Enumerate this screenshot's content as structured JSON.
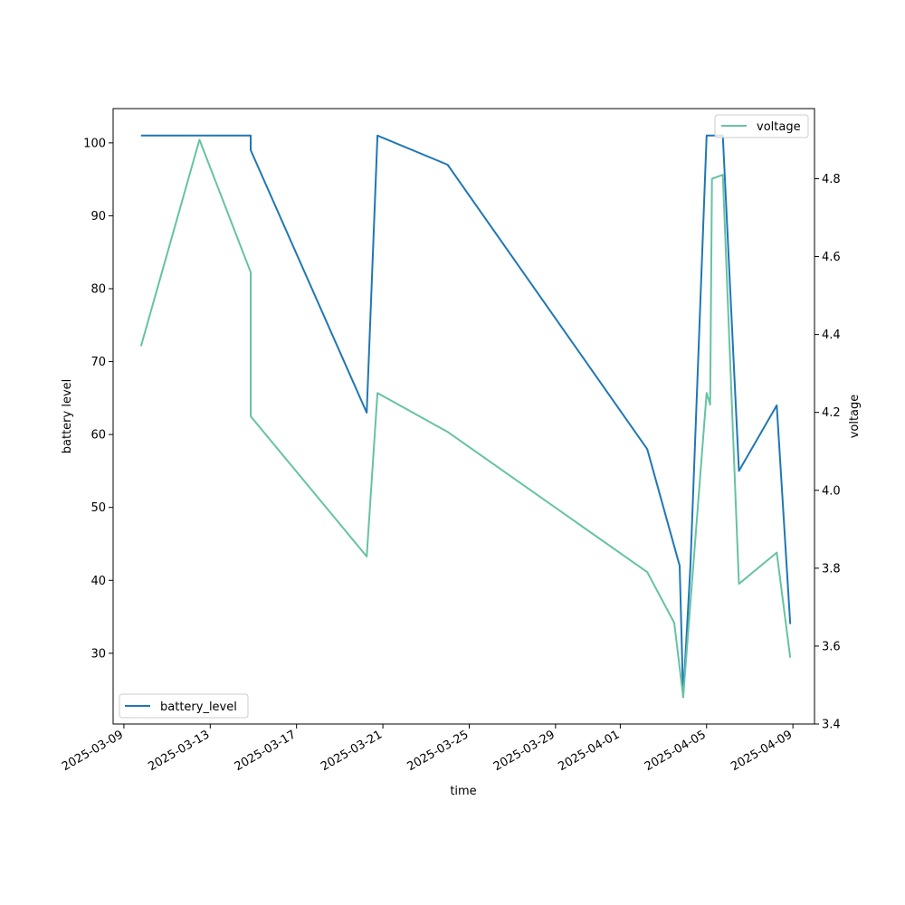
{
  "chart_data": {
    "type": "line",
    "xlabel": "time",
    "ylabel_left": "battery level",
    "ylabel_right": "voltage",
    "xlim": [
      "2025-03-08T12:00",
      "2025-04-10T00:00"
    ],
    "ylim_left": [
      20.3,
      104.7
    ],
    "ylim_right": [
      3.4,
      4.98
    ],
    "x_ticks": [
      "2025-03-09",
      "2025-03-13",
      "2025-03-17",
      "2025-03-21",
      "2025-03-25",
      "2025-03-29",
      "2025-04-01",
      "2025-04-05",
      "2025-04-09"
    ],
    "y_ticks_left": [
      30,
      40,
      50,
      60,
      70,
      80,
      90,
      100
    ],
    "y_ticks_right": [
      3.4,
      3.6,
      3.8,
      4.0,
      4.2,
      4.4,
      4.6,
      4.8
    ],
    "legend_left": "lower left",
    "legend_right": "upper right",
    "grid": false,
    "series": [
      {
        "name": "battery_level",
        "axis": "left",
        "color": "#1f77b4",
        "points": [
          {
            "x": "2025-03-09T19:00",
            "y": 101
          },
          {
            "x": "2025-03-12T12:00",
            "y": 101
          },
          {
            "x": "2025-03-14T21:00",
            "y": 101
          },
          {
            "x": "2025-03-14T21:00",
            "y": 99
          },
          {
            "x": "2025-03-20T06:00",
            "y": 63
          },
          {
            "x": "2025-03-20T18:00",
            "y": 101
          },
          {
            "x": "2025-03-24T00:00",
            "y": 97
          },
          {
            "x": "2025-04-02T06:00",
            "y": 58
          },
          {
            "x": "2025-04-03T18:00",
            "y": 42
          },
          {
            "x": "2025-04-03T22:00",
            "y": 24
          },
          {
            "x": "2025-04-04T06:00",
            "y": 42
          },
          {
            "x": "2025-04-05T00:00",
            "y": 101
          },
          {
            "x": "2025-04-05T18:00",
            "y": 101
          },
          {
            "x": "2025-04-06T12:00",
            "y": 55
          },
          {
            "x": "2025-04-08T06:00",
            "y": 64
          },
          {
            "x": "2025-04-08T21:00",
            "y": 34
          }
        ]
      },
      {
        "name": "voltage",
        "axis": "right",
        "color": "#66c2a5",
        "points": [
          {
            "x": "2025-03-09T19:00",
            "y": 4.37
          },
          {
            "x": "2025-03-12T12:00",
            "y": 4.9
          },
          {
            "x": "2025-03-14T21:00",
            "y": 4.56
          },
          {
            "x": "2025-03-14T21:00",
            "y": 4.19
          },
          {
            "x": "2025-03-20T06:00",
            "y": 3.83
          },
          {
            "x": "2025-03-20T18:00",
            "y": 4.25
          },
          {
            "x": "2025-03-24T00:00",
            "y": 4.15
          },
          {
            "x": "2025-04-02T06:00",
            "y": 3.79
          },
          {
            "x": "2025-04-03T12:00",
            "y": 3.66
          },
          {
            "x": "2025-04-03T22:00",
            "y": 3.47
          },
          {
            "x": "2025-04-05T00:00",
            "y": 4.25
          },
          {
            "x": "2025-04-05T04:00",
            "y": 4.22
          },
          {
            "x": "2025-04-05T06:00",
            "y": 4.8
          },
          {
            "x": "2025-04-05T18:00",
            "y": 4.81
          },
          {
            "x": "2025-04-06T12:00",
            "y": 3.76
          },
          {
            "x": "2025-04-08T06:00",
            "y": 3.84
          },
          {
            "x": "2025-04-08T21:00",
            "y": 3.57
          }
        ]
      }
    ]
  }
}
